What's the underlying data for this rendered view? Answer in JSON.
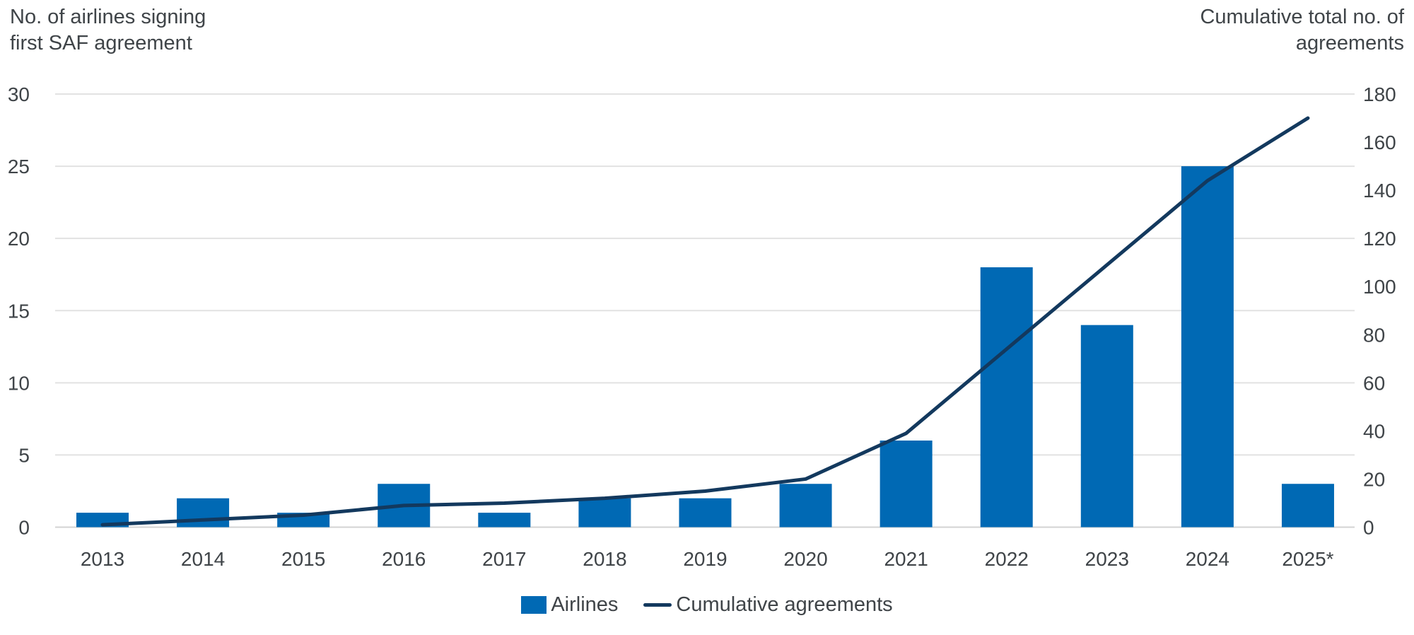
{
  "page": {
    "background": "#ffffff"
  },
  "left_axis_title": "No. of airlines signing\nfirst SAF agreement",
  "right_axis_title": "Cumulative total no. of\nagreements",
  "legend": {
    "airlines_label": "Airlines",
    "cumulative_label": "Cumulative agreements"
  },
  "colors": {
    "bar": "#0069B4",
    "line": "#13395E",
    "text": "#3F4448",
    "grid": "#E2E2E2",
    "baseline": "#D3D3D3"
  },
  "chart_data": {
    "type": "combo-bar-line",
    "categories": [
      "2013",
      "2014",
      "2015",
      "2016",
      "2017",
      "2018",
      "2019",
      "2020",
      "2021",
      "2022",
      "2023",
      "2024",
      "2025*"
    ],
    "series": [
      {
        "name": "Airlines",
        "type": "bar",
        "axis": "left",
        "values": [
          1,
          2,
          1,
          3,
          1,
          2,
          2,
          3,
          6,
          18,
          14,
          25,
          3
        ]
      },
      {
        "name": "Cumulative agreements",
        "type": "line",
        "axis": "right",
        "values": [
          1,
          3,
          5,
          9,
          10,
          12,
          15,
          20,
          39,
          74,
          109,
          144,
          170
        ]
      }
    ],
    "left_axis": {
      "title": "No. of airlines signing first SAF agreement",
      "range": [
        0,
        30
      ],
      "ticks": [
        0,
        5,
        10,
        15,
        20,
        25,
        30
      ]
    },
    "right_axis": {
      "title": "Cumulative total no. of agreements",
      "range": [
        0,
        180
      ],
      "ticks": [
        0,
        20,
        40,
        60,
        80,
        100,
        120,
        140,
        160,
        180
      ]
    },
    "grid": true,
    "legend_position": "bottom-center"
  }
}
